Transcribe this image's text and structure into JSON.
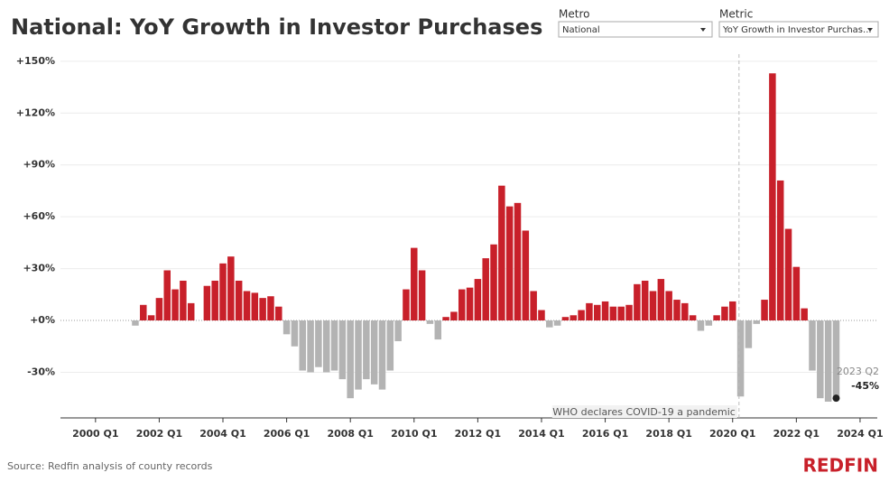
{
  "chart_data": {
    "type": "bar",
    "title": "National: YoY Growth in Investor Purchases",
    "x": [
      2001.25,
      2001.5,
      2001.75,
      2002,
      2002.25,
      2002.5,
      2002.75,
      2003,
      2003.25,
      2003.5,
      2003.75,
      2004,
      2004.25,
      2004.5,
      2004.75,
      2005,
      2005.25,
      2005.5,
      2005.75,
      2006,
      2006.25,
      2006.5,
      2006.75,
      2007,
      2007.25,
      2007.5,
      2007.75,
      2008,
      2008.25,
      2008.5,
      2008.75,
      2009,
      2009.25,
      2009.5,
      2009.75,
      2010,
      2010.25,
      2010.5,
      2010.75,
      2011,
      2011.25,
      2011.5,
      2011.75,
      2012,
      2012.25,
      2012.5,
      2012.75,
      2013,
      2013.25,
      2013.5,
      2013.75,
      2014,
      2014.25,
      2014.5,
      2014.75,
      2015,
      2015.25,
      2015.5,
      2015.75,
      2016,
      2016.25,
      2016.5,
      2016.75,
      2017,
      2017.25,
      2017.5,
      2017.75,
      2018,
      2018.25,
      2018.5,
      2018.75,
      2019,
      2019.25,
      2019.5,
      2019.75,
      2020,
      2020.25,
      2020.5,
      2020.75,
      2021,
      2021.25,
      2021.5,
      2021.75,
      2022,
      2022.25,
      2022.5,
      2022.75,
      2023,
      2023.25
    ],
    "values": [
      -3,
      9,
      3,
      13,
      29,
      18,
      23,
      10,
      0,
      20,
      23,
      33,
      37,
      23,
      17,
      16,
      13,
      14,
      8,
      -8,
      -15,
      -29,
      -30,
      -27,
      -30,
      -29,
      -34,
      -45,
      -40,
      -34,
      -37,
      -40,
      -29,
      -12,
      18,
      42,
      29,
      -2,
      -11,
      2,
      5,
      18,
      19,
      24,
      36,
      44,
      78,
      66,
      68,
      52,
      17,
      6,
      -4,
      -3,
      2,
      3,
      6,
      10,
      9,
      11,
      8,
      8,
      9,
      21,
      23,
      17,
      24,
      17,
      12,
      10,
      3,
      -6,
      -3,
      3,
      8,
      11,
      -44,
      -16,
      -2,
      12,
      143,
      81,
      53,
      31,
      7,
      -29,
      -45,
      -47,
      -45
    ],
    "value_labels": [
      null,
      null,
      null,
      null,
      null,
      null,
      null,
      null,
      null,
      null,
      null,
      null,
      null,
      null,
      null,
      null,
      null,
      null,
      null,
      null,
      null,
      null,
      null,
      null,
      null,
      null,
      null,
      null,
      null,
      null,
      null,
      null,
      null,
      null,
      null,
      null,
      null,
      null,
      null,
      null,
      null,
      null,
      null,
      null,
      null,
      null,
      null,
      null,
      null,
      null,
      null,
      null,
      null,
      null,
      null,
      null,
      null,
      null,
      null,
      null,
      null,
      null,
      null,
      null,
      null,
      null,
      null,
      null,
      null,
      null,
      null,
      null,
      null,
      null,
      null,
      null,
      null,
      null,
      null,
      null,
      null,
      null,
      null,
      null,
      null,
      null,
      null,
      null,
      "-45%"
    ],
    "highlight_label": "2023 Q2",
    "positive_color": "#c8202a",
    "negative_color": "#b3b3b3",
    "xlim": [
      1998.9,
      2024.54
    ],
    "ylim": [
      -56.4,
      154.1
    ],
    "xticks": [
      {
        "value": 2000,
        "label": "2000 Q1"
      },
      {
        "value": 2002,
        "label": "2002 Q1"
      },
      {
        "value": 2004,
        "label": "2004 Q1"
      },
      {
        "value": 2006,
        "label": "2006 Q1"
      },
      {
        "value": 2008,
        "label": "2008 Q1"
      },
      {
        "value": 2010,
        "label": "2010 Q1"
      },
      {
        "value": 2012,
        "label": "2012 Q1"
      },
      {
        "value": 2014,
        "label": "2014 Q1"
      },
      {
        "value": 2016,
        "label": "2016 Q1"
      },
      {
        "value": 2018,
        "label": "2018 Q1"
      },
      {
        "value": 2020,
        "label": "2020 Q1"
      },
      {
        "value": 2022,
        "label": "2022 Q1"
      },
      {
        "value": 2024,
        "label": "2024 Q1"
      }
    ],
    "yticks": [
      {
        "value": -30,
        "label": "-30%"
      },
      {
        "value": 0,
        "label": "+0%"
      },
      {
        "value": 30,
        "label": "+30%"
      },
      {
        "value": 60,
        "label": "+60%"
      },
      {
        "value": 90,
        "label": "+90%"
      },
      {
        "value": 120,
        "label": "+120%"
      },
      {
        "value": 150,
        "label": "+150%"
      }
    ],
    "grid": true,
    "event": {
      "x": 2020.2,
      "label": "WHO declares COVID-19 a pandemic"
    }
  },
  "filters": [
    {
      "label": "Metro",
      "value": "National"
    },
    {
      "label": "Metric",
      "value": "YoY Growth in Investor Purchas..."
    }
  ],
  "source": "Source: Redfin analysis of county records",
  "logo": "REDFIN"
}
